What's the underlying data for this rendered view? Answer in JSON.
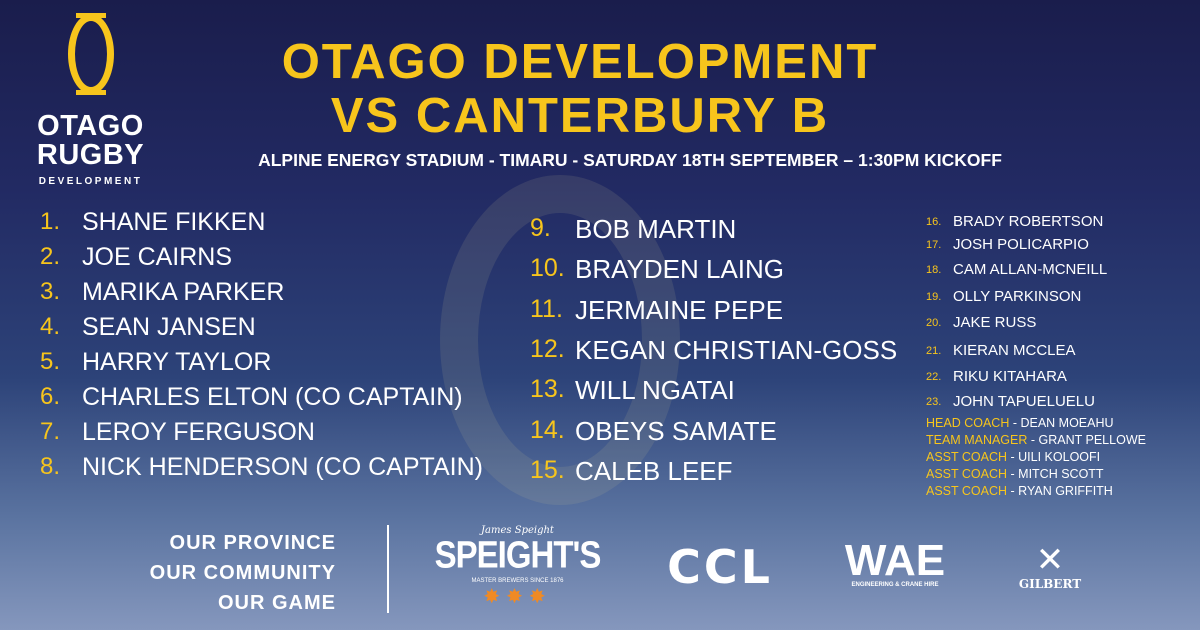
{
  "logo": {
    "line1": "OTAGO",
    "line2": "RUGBY",
    "line3": "DEVELOPMENT"
  },
  "title": {
    "line1": "OTAGO DEVELOPMENT",
    "line2": "VS CANTERBURY B"
  },
  "subtitle": "ALPINE ENERGY STADIUM - TIMARU - SATURDAY 18TH SEPTEMBER – 1:30PM KICKOFF",
  "starters_a": [
    {
      "num": "1.",
      "name": "SHANE FIKKEN"
    },
    {
      "num": "2.",
      "name": "JOE CAIRNS"
    },
    {
      "num": "3.",
      "name": "MARIKA PARKER"
    },
    {
      "num": "4.",
      "name": "SEAN JANSEN"
    },
    {
      "num": "5.",
      "name": "HARRY TAYLOR"
    },
    {
      "num": "6.",
      "name": "CHARLES ELTON (CO CAPTAIN)"
    },
    {
      "num": "7.",
      "name": "LEROY FERGUSON"
    },
    {
      "num": "8.",
      "name": "NICK HENDERSON (CO CAPTAIN)"
    }
  ],
  "starters_b": [
    {
      "num": "9.",
      "name": "BOB MARTIN"
    },
    {
      "num": "10.",
      "name": "BRAYDEN LAING"
    },
    {
      "num": "11.",
      "name": "JERMAINE PEPE"
    },
    {
      "num": "12.",
      "name": "KEGAN CHRISTIAN-GOSS"
    },
    {
      "num": "13.",
      "name": "WILL NGATAI"
    },
    {
      "num": "14.",
      "name": "OBEYS SAMATE"
    },
    {
      "num": "15.",
      "name": "CALEB LEEF"
    }
  ],
  "reserves": [
    {
      "num": "16.",
      "name": "BRADY ROBERTSON"
    },
    {
      "num": "17.",
      "name": "JOSH POLICARPIO"
    },
    {
      "num": "18.",
      "name": "CAM ALLAN-MCNEILL"
    },
    {
      "num": "19.",
      "name": "OLLY PARKINSON"
    },
    {
      "num": "20.",
      "name": "JAKE RUSS"
    },
    {
      "num": "21.",
      "name": "KIERAN MCCLEA"
    },
    {
      "num": "22.",
      "name": "RIKU KITAHARA"
    },
    {
      "num": "23.",
      "name": "JOHN TAPUELUELU"
    }
  ],
  "staff": [
    {
      "role": "HEAD COACH",
      "name": " - DEAN MOEAHU"
    },
    {
      "role": "TEAM MANAGER",
      "name": " - GRANT PELLOWE"
    },
    {
      "role": "ASST COACH",
      "name": " - UILI KOLOOFI"
    },
    {
      "role": "ASST COACH",
      "name": " - MITCH SCOTT"
    },
    {
      "role": "ASST COACH",
      "name": " - RYAN GRIFFITH"
    }
  ],
  "tagline": [
    "OUR PROVINCE",
    "OUR COMMUNITY",
    "OUR GAME"
  ],
  "sponsors": {
    "speights": "SPEIGHT'S",
    "speights_sub": "MASTER BREWERS SINCE 1876",
    "speights_sig": "James Speight",
    "ccl": "CCL",
    "wae": "WAE",
    "wae_sub": "ENGINEERING & CRANE HIRE",
    "gilbert": "GILBERT"
  },
  "colors": {
    "accent": "#f7c51c",
    "background_top": "#1a1d4c",
    "background_bottom": "#8597bd",
    "star": "#f08a24"
  }
}
